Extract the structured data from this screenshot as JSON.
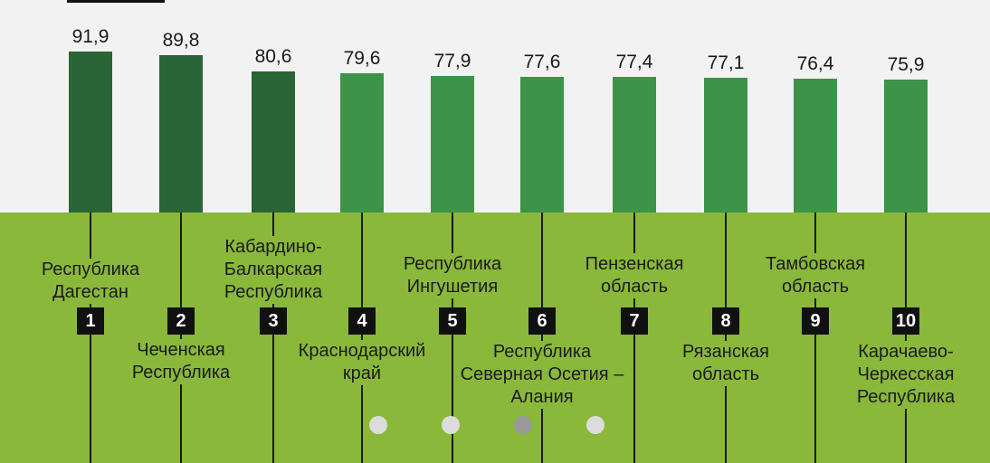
{
  "colors": {
    "top_bar": "#2a6535",
    "other_bar": "#3d9448",
    "ground": "#8ab83a",
    "dot": "#dcdcdc",
    "dot_active": "#9a9a9a"
  },
  "pagination": {
    "count": 4,
    "active_index": 2
  },
  "chart_data": {
    "type": "bar",
    "categories": [
      "Республика\nДагестан",
      "Чеченская\nРеспублика",
      "Кабардино-\nБалкарская\nРеспублика",
      "Краснодарский\nкрай",
      "Республика\nИнгушетия",
      "Республика\nСеверная Осетия –\nАлания",
      "Пензенская\nобласть",
      "Рязанская\nобласть",
      "Тамбовская\nобласть",
      "Карачаево-\nЧеркесская\nРеспублика"
    ],
    "ranks": [
      "1",
      "2",
      "3",
      "4",
      "5",
      "6",
      "7",
      "8",
      "9",
      "10"
    ],
    "values": [
      91.9,
      89.8,
      80.6,
      79.6,
      77.9,
      77.6,
      77.4,
      77.1,
      76.4,
      75.9
    ],
    "value_labels": [
      "91,9",
      "89,8",
      "80,6",
      "79,6",
      "77,9",
      "77,6",
      "77,4",
      "77,1",
      "76,4",
      "75,9"
    ],
    "highlighted_count": 3,
    "title": "",
    "xlabel": "",
    "ylabel": ""
  }
}
